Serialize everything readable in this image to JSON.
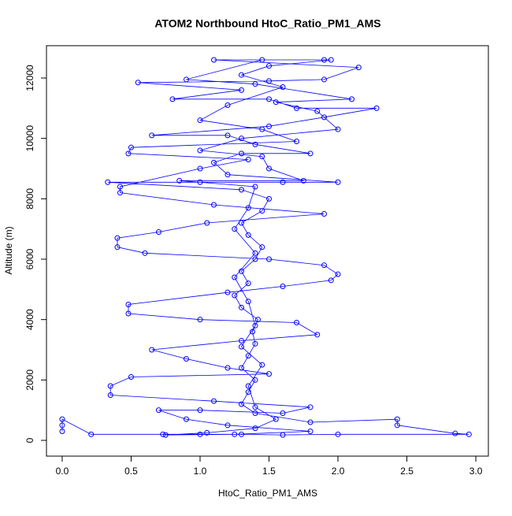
{
  "chart_data": {
    "type": "line",
    "title": "ATOM2 Northbound HtoC_Ratio_PM1_AMS",
    "x_label": "HtoC_Ratio_PM1_AMS",
    "y_label": "Altitude (m)",
    "color": "#0000ff",
    "markers": "circle-open",
    "xlim": [
      -0.114,
      3.091
    ],
    "ylim": [
      -522,
      13070
    ],
    "xticks": [
      {
        "value": 0,
        "label": "0.0"
      },
      0.5,
      {
        "value": 1,
        "label": "1.0"
      },
      1.5,
      {
        "value": 2,
        "label": "2.0"
      },
      2.5,
      {
        "value": 3,
        "label": "3.0"
      }
    ],
    "yticks": [
      0,
      2000,
      4000,
      6000,
      8000,
      10000,
      12000
    ],
    "x": [
      0.0,
      0.0,
      0.0,
      0.21,
      0.73,
      1.0,
      1.3,
      1.6,
      2.0,
      2.95,
      2.85,
      2.43,
      2.43,
      1.8,
      1.4,
      1.3,
      1.35,
      1.4,
      1.3,
      1.35,
      1.4,
      1.38,
      1.42,
      1.3,
      1.25,
      1.35,
      1.3,
      1.4,
      1.45,
      1.35,
      1.3,
      1.45,
      1.5,
      1.3,
      0.33,
      1.0,
      1.6,
      2.0,
      1.2,
      1.1,
      1.3,
      1.8,
      1.4,
      1.2,
      0.65,
      1.5,
      1.9,
      2.28,
      1.7,
      1.5,
      0.8,
      1.3,
      0.55,
      1.5,
      1.9,
      2.15,
      1.1,
      1.95,
      1.5,
      1.3,
      1.6,
      1.2,
      1.0,
      1.45,
      1.7,
      0.5,
      0.48,
      1.35,
      1.0,
      0.42,
      0.42,
      1.1,
      1.9,
      1.05,
      0.7,
      0.4,
      0.4,
      0.6,
      1.5,
      1.9,
      2.0,
      1.95,
      1.6,
      1.2,
      0.48,
      0.48,
      1.0,
      1.7,
      1.85,
      1.3,
      0.65,
      0.9,
      1.2,
      1.5,
      0.5,
      0.35,
      0.35,
      1.1,
      1.8,
      1.6,
      1.0,
      0.7,
      0.9,
      1.2,
      1.8,
      1.25,
      0.75,
      1.05,
      1.4,
      1.55,
      1.4,
      1.35,
      1.45,
      1.3,
      1.4,
      1.35,
      1.25,
      1.4,
      1.25,
      1.35,
      1.4,
      0.85,
      1.75,
      1.5,
      1.45,
      1.0,
      1.3,
      2.0,
      1.85,
      1.55,
      2.1,
      1.4,
      0.9,
      1.45,
      1.9
    ],
    "values": [
      300,
      500,
      700,
      200,
      200,
      200,
      200,
      180,
      200,
      200,
      230,
      500,
      700,
      600,
      900,
      1200,
      1600,
      2000,
      2400,
      2800,
      3200,
      3600,
      4000,
      4400,
      4800,
      5200,
      5600,
      6000,
      6400,
      6800,
      7200,
      7600,
      8000,
      8300,
      8550,
      8550,
      8550,
      8550,
      8800,
      9200,
      9500,
      9500,
      9800,
      10100,
      10100,
      10400,
      10700,
      11000,
      11000,
      11300,
      11300,
      11600,
      11850,
      11900,
      11950,
      12350,
      12600,
      12600,
      12400,
      12100,
      11700,
      11100,
      10600,
      10300,
      9900,
      9700,
      9500,
      9300,
      9000,
      8400,
      8200,
      7800,
      7500,
      7200,
      6900,
      6700,
      6400,
      6200,
      6000,
      5800,
      5500,
      5300,
      5100,
      4900,
      4500,
      4200,
      4000,
      3900,
      3500,
      3300,
      3000,
      2700,
      2400,
      2200,
      2100,
      1800,
      1500,
      1300,
      1100,
      900,
      1000,
      1000,
      700,
      500,
      300,
      200,
      180,
      250,
      400,
      700,
      1100,
      1800,
      2500,
      3100,
      3800,
      4600,
      5400,
      6200,
      7000,
      7700,
      8400,
      8600,
      8600,
      9000,
      9400,
      9600,
      10000,
      10300,
      10900,
      11200,
      11300,
      11800,
      11950,
      12600,
      12600
    ]
  }
}
